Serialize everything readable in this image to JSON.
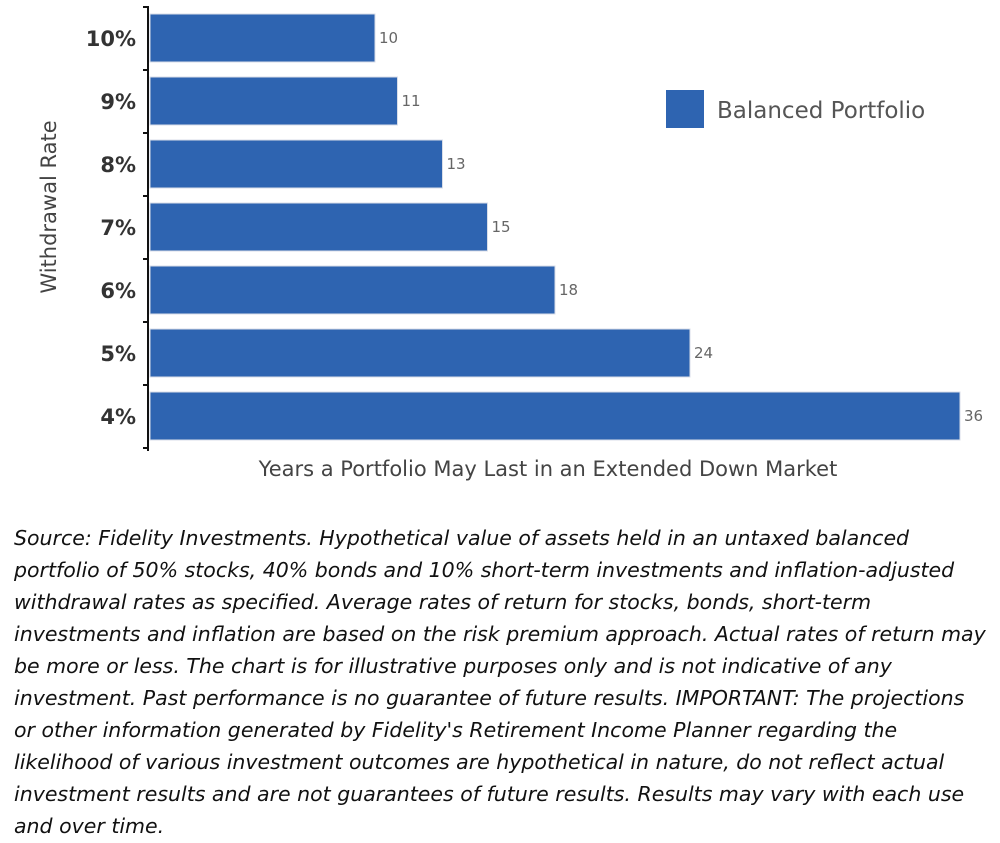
{
  "chart_data": {
    "type": "bar",
    "orientation": "horizontal",
    "categories": [
      "10%",
      "9%",
      "8%",
      "7%",
      "6%",
      "5%",
      "4%"
    ],
    "series": [
      {
        "name": "Balanced Portfolio",
        "values": [
          10,
          11,
          13,
          15,
          18,
          24,
          36
        ],
        "color": "#2e64b1"
      }
    ],
    "xlabel": "Years a Portfolio May Last in an Extended Down Market",
    "ylabel": "Withdrawal Rate",
    "xlim": [
      0,
      36
    ],
    "grid": false,
    "legend": "top-right"
  },
  "footnote": "Source: Fidelity Investments. Hypothetical value of assets held in an untaxed balanced portfolio of 50% stocks, 40% bonds and 10% short-term investments and inflation-adjusted withdrawal rates as specified. Average rates of return for stocks, bonds, short-term investments and inflation are based on the risk premium approach. Actual rates of return may be more or less. The chart is for illustrative purposes only and is not indicative of any investment. Past performance is no guarantee of future results. IMPORTANT: The projections or other information generated by Fidelity's Retirement Income Planner regarding the likelihood of various investment outcomes are hypothetical in nature, do not reflect actual investment results and are not guarantees of future results. Results may vary with each use and over time."
}
